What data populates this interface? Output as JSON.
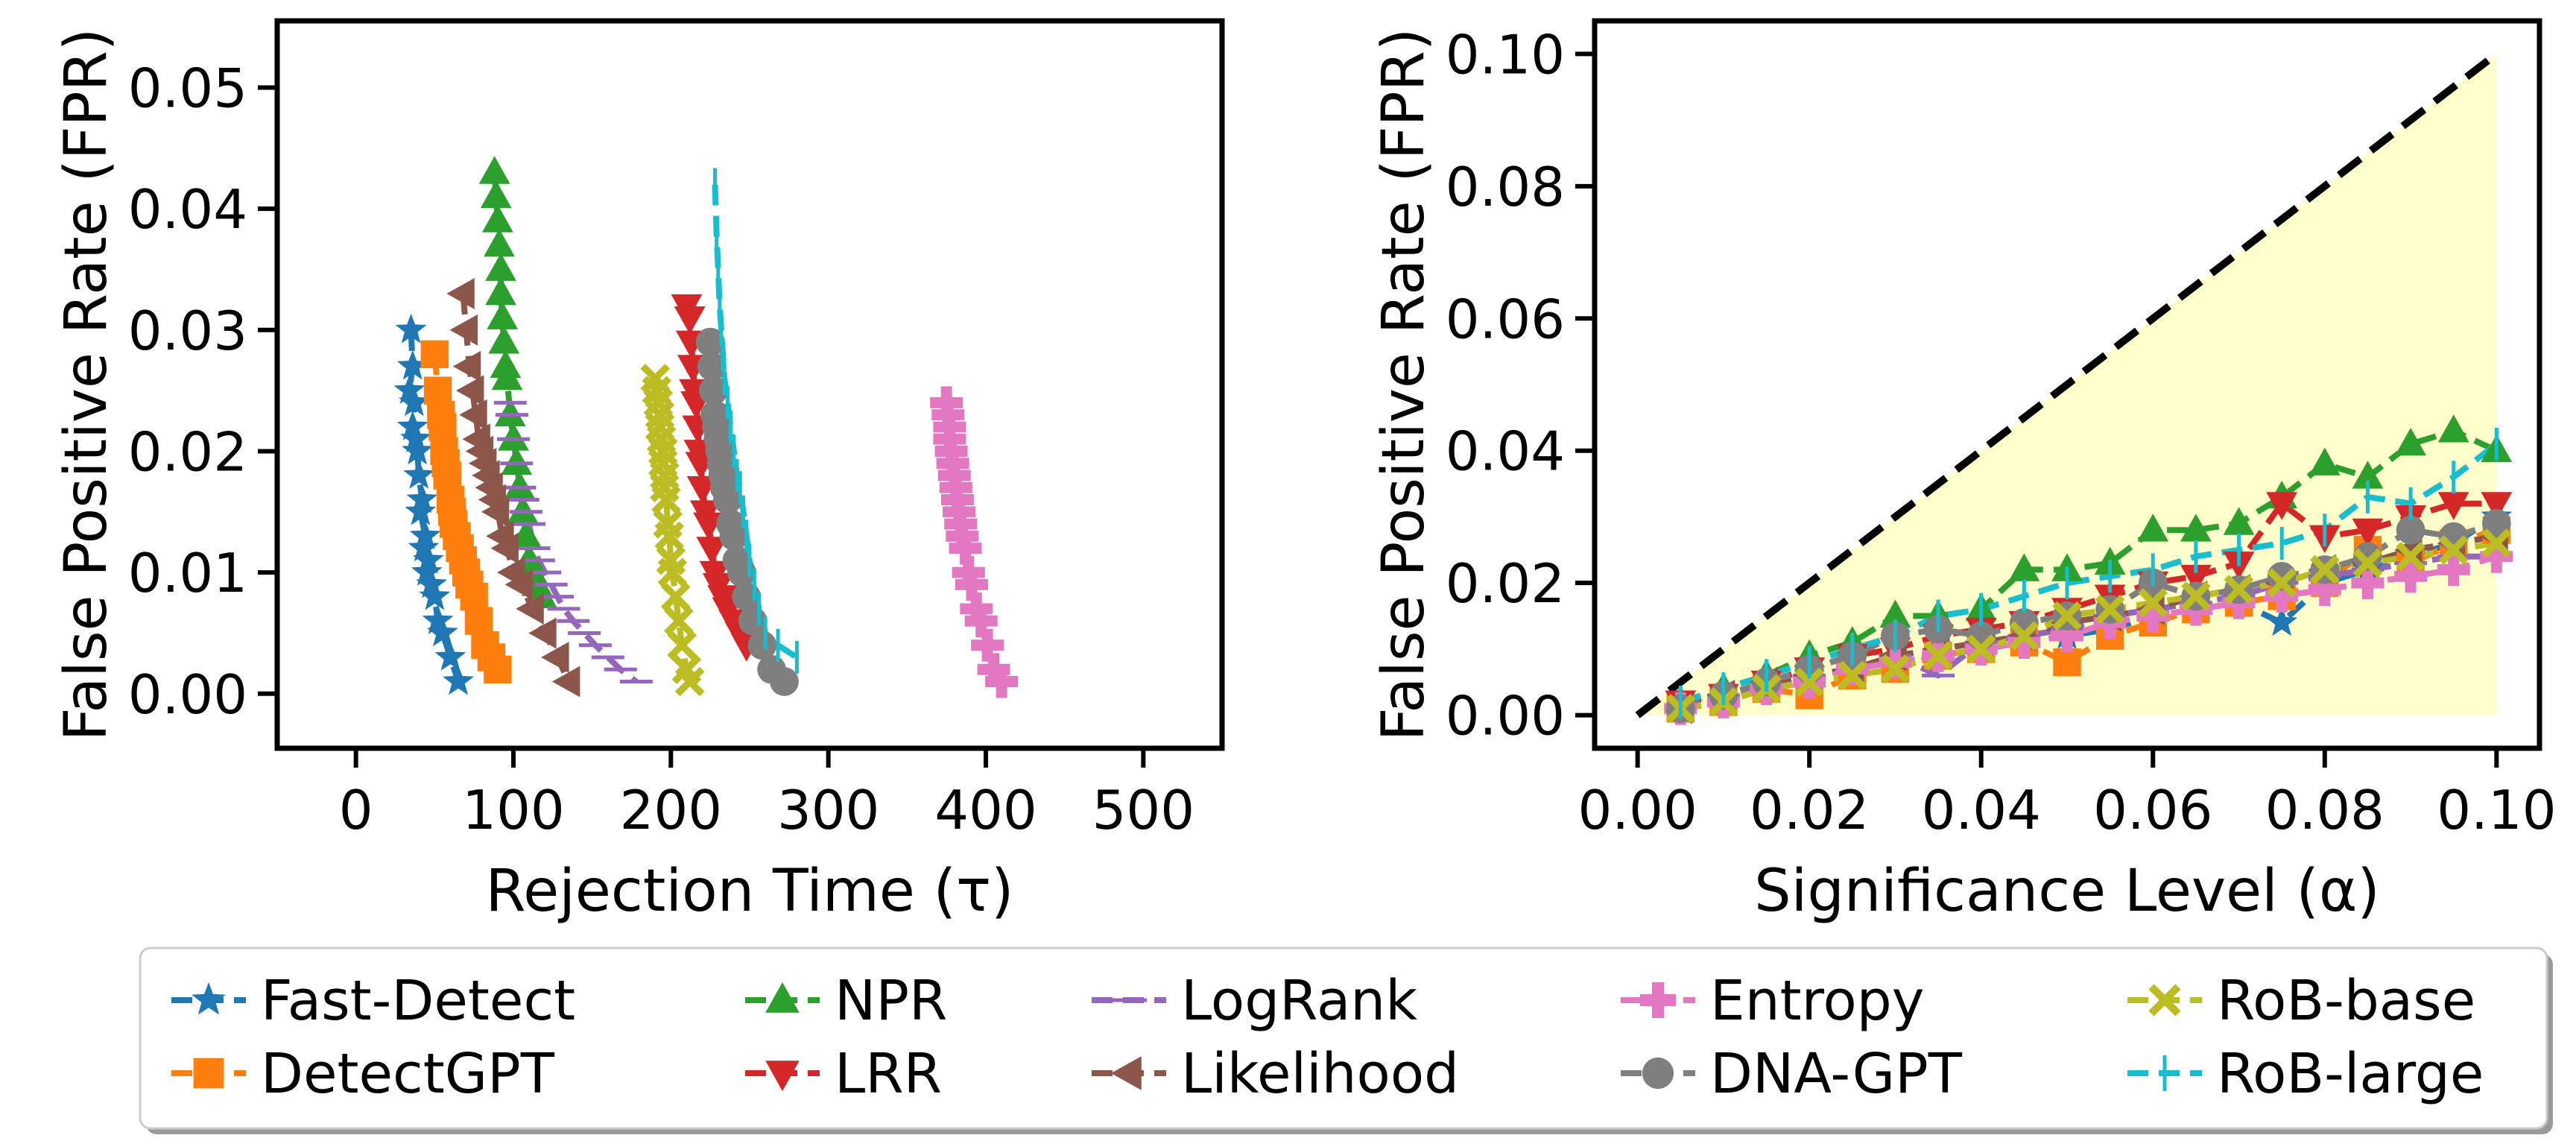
{
  "chart_data": [
    {
      "type": "line",
      "xlabel": "Rejection Time (τ)",
      "ylabel": "False Positive Rate (FPR)",
      "xlim": [
        -50,
        550
      ],
      "ylim": [
        -0.0045,
        0.0555
      ],
      "xticks": [
        0,
        100,
        200,
        300,
        400,
        500
      ],
      "xtick_labels": [
        "0",
        "100",
        "200",
        "300",
        "400",
        "500"
      ],
      "yticks": [
        0.0,
        0.01,
        0.02,
        0.03,
        0.04,
        0.05
      ],
      "ytick_labels": [
        "0.00",
        "0.01",
        "0.02",
        "0.03",
        "0.04",
        "0.05"
      ],
      "grid": false,
      "y_fpr": [
        0.001,
        0.002,
        0.003,
        0.004,
        0.005,
        0.006,
        0.007,
        0.008,
        0.009,
        0.01,
        0.011,
        0.012,
        0.013,
        0.014,
        0.015,
        0.016,
        0.017,
        0.018,
        0.019,
        0.02
      ],
      "series": [
        {
          "name": "Fast-Detect",
          "x": [
            35,
            36,
            34,
            37,
            36,
            38,
            39,
            40,
            42,
            41,
            44,
            43,
            46,
            45,
            48,
            50,
            52,
            55,
            60,
            65
          ],
          "y": [
            0.03,
            0.027,
            0.025,
            0.024,
            0.022,
            0.021,
            0.02,
            0.018,
            0.016,
            0.015,
            0.013,
            0.012,
            0.011,
            0.01,
            0.009,
            0.008,
            0.006,
            0.005,
            0.003,
            0.001
          ]
        },
        {
          "name": "DetectGPT",
          "x": [
            50,
            52,
            54,
            55,
            56,
            57,
            58,
            60,
            61,
            62,
            64,
            66,
            68,
            70,
            72,
            75,
            78,
            82,
            86,
            90
          ],
          "y": [
            0.028,
            0.025,
            0.023,
            0.022,
            0.02,
            0.019,
            0.018,
            0.016,
            0.015,
            0.014,
            0.013,
            0.012,
            0.011,
            0.01,
            0.009,
            0.008,
            0.006,
            0.004,
            0.003,
            0.002
          ]
        },
        {
          "name": "NPR",
          "x": [
            88,
            89,
            90,
            91,
            92,
            92,
            93,
            94,
            95,
            96,
            98,
            100,
            102,
            104,
            106,
            108,
            110,
            112,
            115,
            118
          ],
          "y": [
            0.043,
            0.041,
            0.039,
            0.037,
            0.035,
            0.033,
            0.031,
            0.029,
            0.027,
            0.026,
            0.023,
            0.021,
            0.019,
            0.017,
            0.015,
            0.013,
            0.011,
            0.01,
            0.009,
            0.008
          ]
        },
        {
          "name": "LRR",
          "x": [
            210,
            212,
            213,
            214,
            215,
            216,
            217,
            218,
            219,
            220,
            222,
            224,
            226,
            228,
            230,
            233,
            236,
            240,
            244,
            248
          ],
          "y": [
            0.032,
            0.031,
            0.029,
            0.027,
            0.025,
            0.024,
            0.022,
            0.02,
            0.019,
            0.017,
            0.015,
            0.014,
            0.012,
            0.01,
            0.009,
            0.008,
            0.007,
            0.006,
            0.005,
            0.004
          ]
        },
        {
          "name": "LogRank",
          "x": [
            98,
            99,
            100,
            102,
            104,
            106,
            108,
            110,
            113,
            116,
            120,
            124,
            128,
            132,
            138,
            145,
            152,
            160,
            168,
            178
          ],
          "y": [
            0.024,
            0.023,
            0.021,
            0.019,
            0.017,
            0.016,
            0.015,
            0.014,
            0.012,
            0.011,
            0.01,
            0.009,
            0.008,
            0.007,
            0.006,
            0.005,
            0.004,
            0.003,
            0.002,
            0.001
          ]
        },
        {
          "name": "Likelihood",
          "x": [
            68,
            70,
            72,
            74,
            76,
            78,
            80,
            82,
            84,
            86,
            88,
            90,
            93,
            96,
            100,
            105,
            112,
            120,
            128,
            135
          ],
          "y": [
            0.033,
            0.03,
            0.027,
            0.025,
            0.023,
            0.021,
            0.02,
            0.019,
            0.018,
            0.017,
            0.016,
            0.015,
            0.013,
            0.012,
            0.01,
            0.009,
            0.007,
            0.005,
            0.003,
            0.001
          ]
        },
        {
          "name": "Entropy",
          "x": [
            375,
            376,
            377,
            377,
            378,
            379,
            380,
            381,
            382,
            383,
            384,
            385,
            387,
            389,
            391,
            394,
            397,
            401,
            405,
            410
          ],
          "y": [
            0.024,
            0.023,
            0.022,
            0.021,
            0.02,
            0.019,
            0.018,
            0.017,
            0.016,
            0.015,
            0.014,
            0.013,
            0.012,
            0.01,
            0.009,
            0.007,
            0.006,
            0.004,
            0.002,
            0.001
          ]
        },
        {
          "name": "DNA-GPT",
          "x": [
            225,
            226,
            227,
            228,
            229,
            230,
            231,
            232,
            233,
            234,
            236,
            238,
            240,
            242,
            245,
            248,
            252,
            258,
            264,
            272
          ],
          "y": [
            0.029,
            0.027,
            0.025,
            0.023,
            0.022,
            0.021,
            0.02,
            0.019,
            0.018,
            0.017,
            0.016,
            0.014,
            0.013,
            0.011,
            0.01,
            0.008,
            0.006,
            0.004,
            0.002,
            0.001
          ]
        },
        {
          "name": "RoB-base",
          "x": [
            190,
            191,
            192,
            193,
            193,
            194,
            195,
            195,
            196,
            196,
            197,
            198,
            199,
            200,
            201,
            203,
            205,
            207,
            210,
            212
          ],
          "y": [
            0.026,
            0.025,
            0.024,
            0.023,
            0.022,
            0.021,
            0.02,
            0.019,
            0.018,
            0.017,
            0.016,
            0.014,
            0.013,
            0.011,
            0.01,
            0.008,
            0.006,
            0.004,
            0.002,
            0.001
          ]
        },
        {
          "name": "RoB-large",
          "x": [
            228,
            229,
            230,
            231,
            232,
            233,
            234,
            236,
            238,
            240,
            242,
            244,
            246,
            248,
            250,
            253,
            256,
            260,
            268,
            280
          ],
          "y": [
            0.042,
            0.038,
            0.035,
            0.032,
            0.03,
            0.028,
            0.026,
            0.024,
            0.022,
            0.02,
            0.018,
            0.017,
            0.015,
            0.013,
            0.011,
            0.009,
            0.007,
            0.005,
            0.004,
            0.003
          ]
        }
      ]
    },
    {
      "type": "line",
      "xlabel": "Significance Level (α)",
      "ylabel": "False Positive Rate (FPR)",
      "xlim": [
        -0.005,
        0.105
      ],
      "ylim": [
        -0.005,
        0.105
      ],
      "xticks": [
        0.0,
        0.02,
        0.04,
        0.06,
        0.08,
        0.1
      ],
      "xtick_labels": [
        "0.00",
        "0.02",
        "0.04",
        "0.06",
        "0.08",
        "0.10"
      ],
      "yticks": [
        0.0,
        0.02,
        0.04,
        0.06,
        0.08,
        0.1
      ],
      "ytick_labels": [
        "0.00",
        "0.02",
        "0.04",
        "0.06",
        "0.08",
        "0.10"
      ],
      "grid": false,
      "reference_line": {
        "x": [
          0,
          0.1
        ],
        "y": [
          0,
          0.1
        ],
        "style": "dashed",
        "color": "#000000"
      },
      "shaded_region": {
        "polygon_x": [
          0,
          0.1,
          0.1
        ],
        "polygon_y": [
          0,
          0.1,
          0
        ],
        "color": "#ffffcc"
      },
      "x": [
        0.005,
        0.01,
        0.015,
        0.02,
        0.025,
        0.03,
        0.035,
        0.04,
        0.045,
        0.05,
        0.055,
        0.06,
        0.065,
        0.07,
        0.075,
        0.08,
        0.085,
        0.09,
        0.095,
        0.1
      ],
      "series": [
        {
          "name": "Fast-Detect",
          "y": [
            0.001,
            0.002,
            0.004,
            0.006,
            0.007,
            0.008,
            0.009,
            0.01,
            0.011,
            0.012,
            0.013,
            0.015,
            0.016,
            0.017,
            0.014,
            0.02,
            0.022,
            0.024,
            0.026,
            0.03
          ]
        },
        {
          "name": "DetectGPT",
          "y": [
            0.001,
            0.002,
            0.004,
            0.003,
            0.006,
            0.007,
            0.009,
            0.01,
            0.011,
            0.008,
            0.012,
            0.014,
            0.016,
            0.017,
            0.018,
            0.02,
            0.025,
            0.023,
            0.026,
            0.028
          ]
        },
        {
          "name": "NPR",
          "y": [
            0.002,
            0.004,
            0.006,
            0.009,
            0.011,
            0.015,
            0.015,
            0.016,
            0.022,
            0.022,
            0.023,
            0.028,
            0.028,
            0.029,
            0.033,
            0.038,
            0.036,
            0.041,
            0.043,
            0.04
          ]
        },
        {
          "name": "LRR",
          "y": [
            0.002,
            0.003,
            0.005,
            0.007,
            0.009,
            0.01,
            0.012,
            0.013,
            0.014,
            0.016,
            0.018,
            0.02,
            0.021,
            0.023,
            0.032,
            0.027,
            0.028,
            0.03,
            0.032,
            0.032
          ]
        },
        {
          "name": "LogRank",
          "y": [
            0.001,
            0.003,
            0.004,
            0.006,
            0.007,
            0.009,
            0.006,
            0.011,
            0.012,
            0.013,
            0.015,
            0.016,
            0.017,
            0.018,
            0.02,
            0.021,
            0.022,
            0.023,
            0.024,
            0.024
          ]
        },
        {
          "name": "Likelihood",
          "y": [
            0.001,
            0.003,
            0.005,
            0.006,
            0.007,
            0.009,
            0.01,
            0.011,
            0.012,
            0.014,
            0.015,
            0.016,
            0.018,
            0.019,
            0.02,
            0.022,
            0.023,
            0.025,
            0.026,
            0.027
          ]
        },
        {
          "name": "Entropy",
          "y": [
            0.001,
            0.002,
            0.004,
            0.005,
            0.007,
            0.008,
            0.009,
            0.01,
            0.011,
            0.012,
            0.014,
            0.015,
            0.016,
            0.017,
            0.018,
            0.019,
            0.02,
            0.021,
            0.022,
            0.024
          ]
        },
        {
          "name": "DNA-GPT",
          "y": [
            0.001,
            0.003,
            0.005,
            0.007,
            0.009,
            0.012,
            0.013,
            0.012,
            0.014,
            0.015,
            0.016,
            0.02,
            0.018,
            0.019,
            0.021,
            0.022,
            0.024,
            0.028,
            0.027,
            0.029
          ]
        },
        {
          "name": "RoB-base",
          "y": [
            0.001,
            0.002,
            0.004,
            0.005,
            0.006,
            0.007,
            0.009,
            0.01,
            0.012,
            0.015,
            0.016,
            0.017,
            0.018,
            0.019,
            0.02,
            0.022,
            0.023,
            0.024,
            0.025,
            0.026
          ]
        },
        {
          "name": "RoB-large",
          "y": [
            0.002,
            0.004,
            0.006,
            0.008,
            0.01,
            0.012,
            0.015,
            0.016,
            0.018,
            0.02,
            0.021,
            0.022,
            0.024,
            0.025,
            0.026,
            0.028,
            0.033,
            0.032,
            0.036,
            0.041
          ]
        }
      ]
    }
  ],
  "legend": {
    "placement": "bottom",
    "columns": 5,
    "entries": [
      {
        "name": "Fast-Detect",
        "color": "#1f77b4",
        "marker": "star"
      },
      {
        "name": "DetectGPT",
        "color": "#ff7f0e",
        "marker": "square"
      },
      {
        "name": "NPR",
        "color": "#2ca02c",
        "marker": "triangle-up"
      },
      {
        "name": "LRR",
        "color": "#d62728",
        "marker": "triangle-down"
      },
      {
        "name": "LogRank",
        "color": "#9467bd",
        "marker": "hline"
      },
      {
        "name": "Likelihood",
        "color": "#8c564b",
        "marker": "triangle-left"
      },
      {
        "name": "Entropy",
        "color": "#e377c2",
        "marker": "plus"
      },
      {
        "name": "DNA-GPT",
        "color": "#7f7f7f",
        "marker": "circle"
      },
      {
        "name": "RoB-base",
        "color": "#bcbd22",
        "marker": "x"
      },
      {
        "name": "RoB-large",
        "color": "#17becf",
        "marker": "vline"
      }
    ]
  }
}
